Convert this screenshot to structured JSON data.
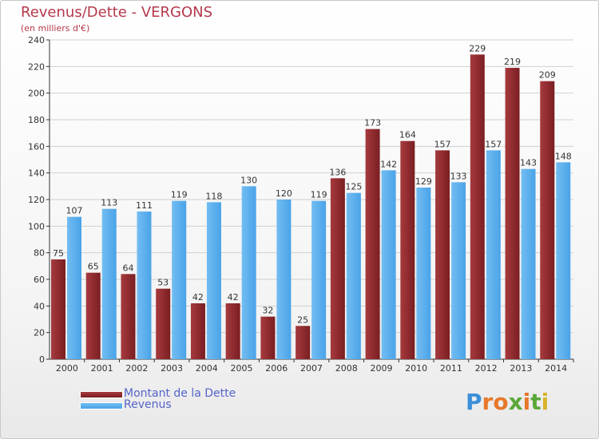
{
  "title": "Revenus/Dette - VERGONS",
  "subtitle": "(en milliers d'€)",
  "legend": [
    {
      "label": "Montant de la Dette",
      "color": "#7a1e22"
    },
    {
      "label": "Revenus",
      "color": "#4aa3e8"
    }
  ],
  "brand": {
    "text": "Proxiti",
    "letters": [
      "P",
      "r",
      "o",
      "x",
      "i",
      "t",
      "i"
    ],
    "colors": [
      "#3a8fd8",
      "#e7782b",
      "#e7782b",
      "#5aa83a",
      "#e7782b",
      "#5aa83a",
      "#d8b32a"
    ]
  },
  "colors": {
    "dette": "#7a1e22",
    "dette_light": "#a63a3e",
    "revenus": "#4aa3e8",
    "revenus_light": "#72bdf2",
    "grid": "#d0d0d0",
    "axis": "#333333"
  },
  "chart_data": {
    "type": "bar",
    "categories": [
      "2000",
      "2001",
      "2002",
      "2003",
      "2004",
      "2005",
      "2006",
      "2007",
      "2008",
      "2009",
      "2010",
      "2011",
      "2012",
      "2013",
      "2014"
    ],
    "series": [
      {
        "name": "Montant de la Dette",
        "values": [
          75,
          65,
          64,
          53,
          42,
          42,
          32,
          25,
          136,
          173,
          164,
          157,
          229,
          219,
          209
        ]
      },
      {
        "name": "Revenus",
        "values": [
          107,
          113,
          111,
          119,
          118,
          130,
          120,
          119,
          125,
          142,
          129,
          133,
          157,
          143,
          148
        ]
      }
    ],
    "ylim": [
      0,
      240
    ],
    "yticks": [
      0,
      20,
      40,
      60,
      80,
      100,
      120,
      140,
      160,
      180,
      200,
      220,
      240
    ],
    "grid": true,
    "legend_position": "bottom-left"
  }
}
